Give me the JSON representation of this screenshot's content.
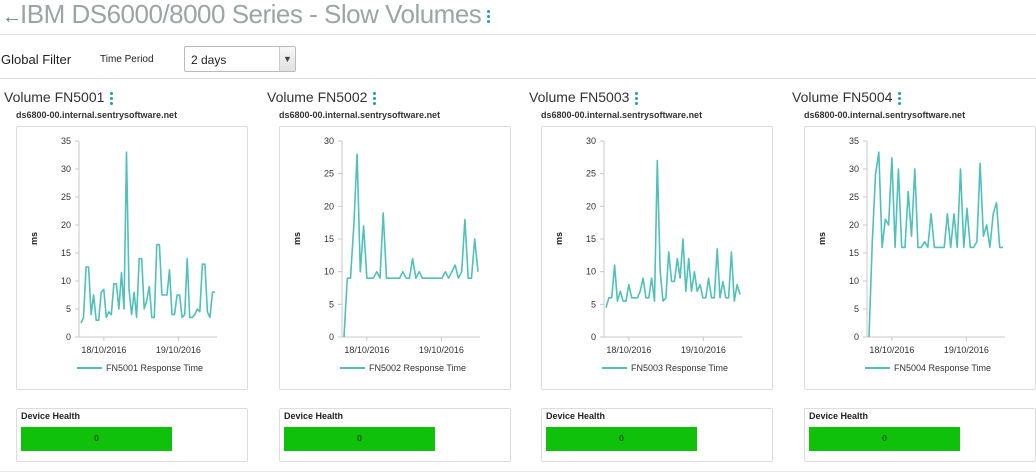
{
  "header": {
    "back_icon": "arrow-left-icon",
    "title": "IBM DS6000/8000 Series - Slow Volumes"
  },
  "filter": {
    "global_label": "Global Filter",
    "time_period_label": "Time Period",
    "time_period_value": "2 days"
  },
  "panels": [
    {
      "title": "Volume FN5001",
      "host": "ds6800-00.internal.sentrysoftware.net",
      "health_label": "Device Health",
      "health_value": "0",
      "chart_data": {
        "type": "line",
        "ylabel": "ms",
        "ylim": [
          0,
          35
        ],
        "yticks": [
          "0",
          "5",
          "10",
          "15",
          "20",
          "25",
          "30",
          "35"
        ],
        "xticks": [
          "18/10/2016",
          "19/10/2016"
        ],
        "series": [
          {
            "name": "FN5001 Response Time",
            "color": "#4fc1b9",
            "values": [
              2.5,
              3.5,
              12.5,
              12.5,
              4,
              7.5,
              3,
              3,
              8,
              8.5,
              3.5,
              4.5,
              4,
              9.5,
              9.5,
              5,
              11.5,
              5,
              33,
              8.5,
              4,
              8,
              3.5,
              14,
              14,
              5,
              6.5,
              9,
              3.5,
              3.5,
              16.5,
              16.5,
              7.5,
              7.5,
              7.5,
              12,
              4,
              4,
              7.5,
              7.5,
              3.5,
              4,
              14,
              3.5,
              3.5,
              4,
              5,
              4.5,
              13,
              13,
              4.5,
              3.5,
              8,
              8
            ]
          }
        ]
      }
    },
    {
      "title": "Volume FN5002",
      "host": "ds6800-00.internal.sentrysoftware.net",
      "health_label": "Device Health",
      "health_value": "0",
      "chart_data": {
        "type": "line",
        "ylabel": "ms",
        "ylim": [
          0,
          30
        ],
        "yticks": [
          "0",
          "5",
          "10",
          "15",
          "20",
          "25",
          "30"
        ],
        "xticks": [
          "18/10/2016",
          "19/10/2016"
        ],
        "series": [
          {
            "name": "FN5002 Response Time",
            "color": "#4fc1b9",
            "values": [
              0,
              9,
              9,
              17,
              28,
              10,
              17,
              9,
              9,
              9,
              10,
              9,
              19,
              9,
              9,
              9,
              9,
              9,
              10,
              9,
              9,
              12,
              9,
              10,
              9,
              9,
              9,
              9,
              9,
              9,
              9,
              10,
              9,
              10,
              11,
              9,
              10,
              18,
              9,
              9,
              15,
              10
            ]
          }
        ]
      }
    },
    {
      "title": "Volume FN5003",
      "host": "ds6800-00.internal.sentrysoftware.net",
      "health_label": "Device Health",
      "health_value": "0",
      "chart_data": {
        "type": "line",
        "ylabel": "ms",
        "ylim": [
          0,
          30
        ],
        "yticks": [
          "0",
          "5",
          "10",
          "15",
          "20",
          "25",
          "30"
        ],
        "xticks": [
          "18/10/2016",
          "19/10/2016"
        ],
        "series": [
          {
            "name": "FN5003 Response Time",
            "color": "#4fc1b9",
            "values": [
              4.5,
              6,
              6,
              11,
              5.5,
              7,
              5.5,
              5.5,
              8,
              6,
              6,
              6,
              7,
              9,
              6,
              6,
              9,
              5.5,
              27,
              10,
              5.5,
              6,
              13,
              8.5,
              8.5,
              12,
              9,
              15,
              7,
              12,
              7,
              10,
              7,
              8,
              6,
              6,
              9,
              6,
              6,
              13.5,
              6,
              8.5,
              6,
              6,
              13,
              5.5,
              8,
              6.5
            ]
          }
        ]
      }
    },
    {
      "title": "Volume FN5004",
      "host": "ds6800-00.internal.sentrysoftware.net",
      "health_label": "Device Health",
      "health_value": "0",
      "chart_data": {
        "type": "line",
        "ylabel": "ms",
        "ylim": [
          0,
          35
        ],
        "yticks": [
          "0",
          "5",
          "10",
          "15",
          "20",
          "25",
          "30",
          "35"
        ],
        "xticks": [
          "18/10/2016",
          "19/10/2016"
        ],
        "series": [
          {
            "name": "FN5004 Response Time",
            "color": "#4fc1b9",
            "values": [
              0,
              17,
              29,
              33,
              16,
              21,
              20,
              32,
              16,
              30,
              16,
              16,
              26,
              18,
              30,
              16,
              16,
              17,
              16,
              22,
              16,
              16,
              16,
              16,
              22,
              16,
              22,
              16,
              30,
              16,
              23,
              16,
              16,
              17,
              31,
              18,
              20,
              16,
              22,
              24,
              16,
              16
            ]
          }
        ]
      }
    }
  ]
}
